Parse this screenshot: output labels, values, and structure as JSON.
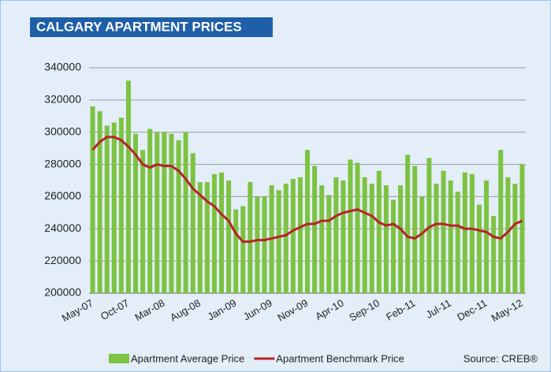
{
  "chart_data": {
    "type": "bar",
    "title": "CALGARY APARTMENT PRICES",
    "source": "Source: CREB®",
    "categories": [
      "May-07",
      null,
      null,
      null,
      null,
      "Oct-07",
      null,
      null,
      null,
      null,
      "Mar-08",
      null,
      null,
      null,
      null,
      "Aug-08",
      null,
      null,
      null,
      null,
      "Jan-09",
      null,
      null,
      null,
      null,
      "Jun-09",
      null,
      null,
      null,
      null,
      "Nov-09",
      null,
      null,
      null,
      null,
      "Apr-10",
      null,
      null,
      null,
      null,
      "Sep-10",
      null,
      null,
      null,
      null,
      "Feb-11",
      null,
      null,
      null,
      null,
      "Jul-11",
      null,
      null,
      null,
      null,
      "Dec-11",
      null,
      null,
      null,
      null,
      "May-12"
    ],
    "series": [
      {
        "name": "Apartment Average Price",
        "type": "bar",
        "color": "#7dc242",
        "values": [
          316000,
          313000,
          304000,
          306000,
          309000,
          332000,
          299000,
          289000,
          302000,
          300000,
          300000,
          299000,
          295000,
          300000,
          287000,
          269000,
          269000,
          274000,
          275000,
          270000,
          252000,
          254000,
          269000,
          260000,
          260000,
          267000,
          264000,
          268000,
          271000,
          272000,
          289000,
          279000,
          267000,
          261000,
          272000,
          270000,
          283000,
          281000,
          272000,
          268000,
          276000,
          267000,
          258000,
          267000,
          286000,
          279000,
          260000,
          284000,
          268000,
          276000,
          270000,
          263000,
          275000,
          274000,
          255000,
          270000,
          248000,
          289000,
          272000,
          268000,
          280000
        ]
      },
      {
        "name": "Apartment Benchmark Price",
        "type": "line",
        "color": "#b5232a",
        "values": [
          289000,
          294000,
          297000,
          297000,
          295000,
          291000,
          286000,
          280000,
          278000,
          280000,
          279000,
          279000,
          276000,
          271000,
          265000,
          261000,
          257000,
          254000,
          249000,
          245000,
          237000,
          232000,
          232000,
          233000,
          233000,
          234000,
          235000,
          236000,
          239000,
          241000,
          243000,
          243000,
          245000,
          245000,
          248000,
          250000,
          251000,
          252000,
          250000,
          248000,
          244000,
          242000,
          243000,
          240000,
          235000,
          234000,
          237000,
          241000,
          243000,
          243000,
          242000,
          242000,
          240000,
          240000,
          239000,
          238000,
          235000,
          234000,
          238000,
          243000,
          245000
        ]
      }
    ],
    "ylim": [
      200000,
      340000
    ],
    "yticks": [
      200000,
      220000,
      240000,
      260000,
      280000,
      300000,
      320000,
      340000
    ],
    "grid": true
  }
}
